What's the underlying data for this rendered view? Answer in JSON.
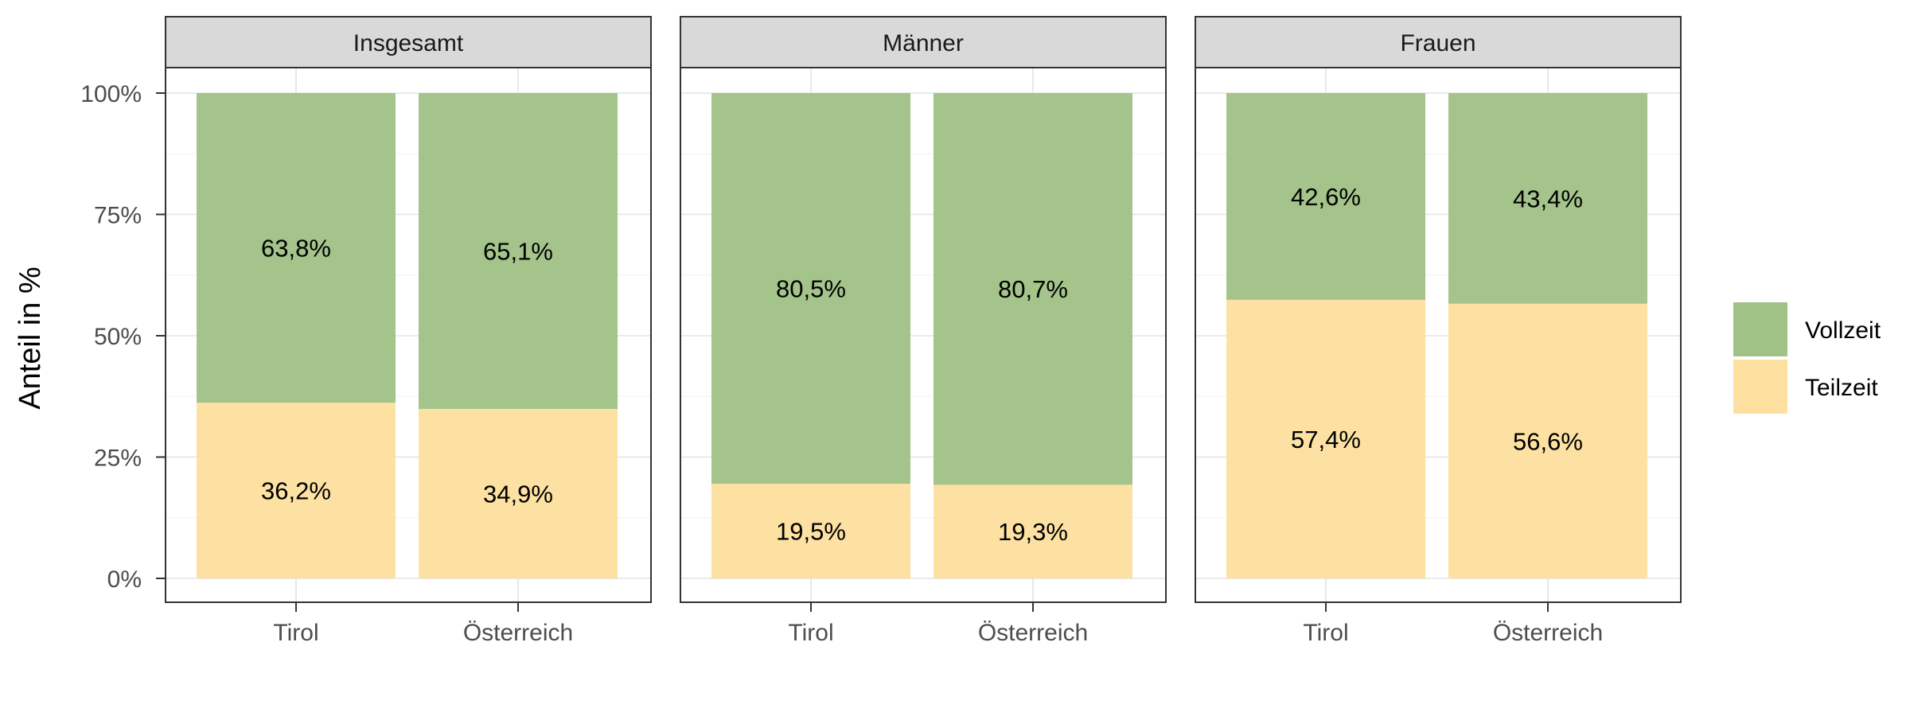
{
  "chart_data": {
    "type": "bar",
    "stacked": true,
    "percent_stacked": true,
    "ylabel": "Anteil in %",
    "xlabel": "",
    "ylim": [
      0,
      100
    ],
    "yticks": [
      "0%",
      "25%",
      "50%",
      "75%",
      "100%"
    ],
    "categories": [
      "Tirol",
      "Österreich"
    ],
    "legend": {
      "placement": "right",
      "entries": [
        {
          "name": "Vollzeit",
          "color": "#a1c287"
        },
        {
          "name": "Teilzeit",
          "color": "#fde0a0"
        }
      ]
    },
    "grid": true,
    "panels": [
      {
        "title": "Insgesamt",
        "series": [
          {
            "name": "Teilzeit",
            "values": [
              36.2,
              34.9
            ],
            "labels": [
              "36,2%",
              "34,9%"
            ]
          },
          {
            "name": "Vollzeit",
            "values": [
              63.8,
              65.1
            ],
            "labels": [
              "63,8%",
              "65,1%"
            ]
          }
        ]
      },
      {
        "title": "Männer",
        "series": [
          {
            "name": "Teilzeit",
            "values": [
              19.5,
              19.3
            ],
            "labels": [
              "19,5%",
              "19,3%"
            ]
          },
          {
            "name": "Vollzeit",
            "values": [
              80.5,
              80.7
            ],
            "labels": [
              "80,5%",
              "80,7%"
            ]
          }
        ]
      },
      {
        "title": "Frauen",
        "series": [
          {
            "name": "Teilzeit",
            "values": [
              57.4,
              56.6
            ],
            "labels": [
              "57,4%",
              "56,6%"
            ]
          },
          {
            "name": "Vollzeit",
            "values": [
              42.6,
              43.4
            ],
            "labels": [
              "42,6%",
              "43,4%"
            ]
          }
        ]
      }
    ]
  }
}
